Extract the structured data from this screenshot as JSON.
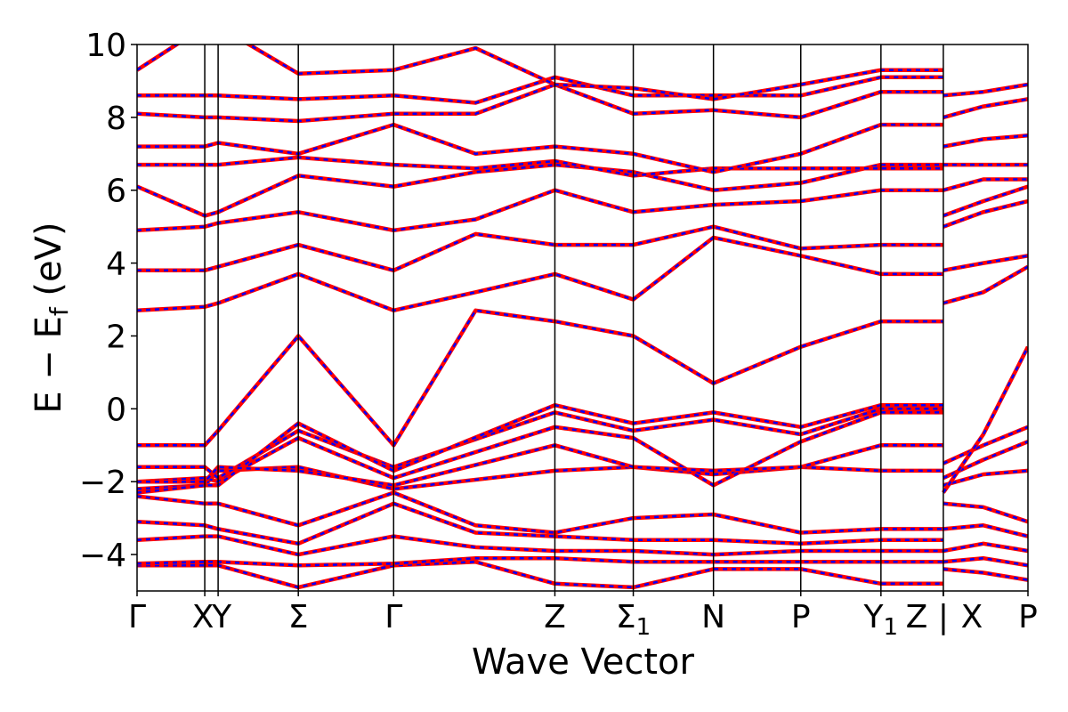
{
  "chart_data": {
    "type": "line",
    "xlabel": "Wave Vector",
    "ylabel": "E − E_f (eV)",
    "ylabel_main": "E − E",
    "ylabel_sub": "f",
    "ylabel_unit": " (eV)",
    "ylim": [
      -5,
      10
    ],
    "y_ticks": [
      -4,
      -2,
      0,
      2,
      4,
      6,
      8,
      10
    ],
    "y_tick_labels": [
      "−4",
      "−2",
      "0",
      "2",
      "4",
      "6",
      "8",
      "10"
    ],
    "xlim": [
      0,
      1
    ],
    "grid": false,
    "band_colors": {
      "solid": "#ff0000",
      "dashed": "#0000ff"
    },
    "high_symmetry_points": [
      {
        "label": "Γ",
        "x": 0.0,
        "line": false
      },
      {
        "label": "X",
        "x": 0.076,
        "line": true
      },
      {
        "label": "Y",
        "x": 0.091,
        "line": true
      },
      {
        "label": "Σ",
        "x": 0.181,
        "line": true
      },
      {
        "label": "Γ",
        "x": 0.288,
        "line": true
      },
      {
        "label": "Z",
        "x": 0.469,
        "line": true
      },
      {
        "label": "Σ",
        "sub": "1",
        "x": 0.557,
        "line": true
      },
      {
        "label": "N",
        "x": 0.647,
        "line": true
      },
      {
        "label": "P",
        "x": 0.745,
        "line": true
      },
      {
        "label": "Y",
        "sub": "1",
        "x": 0.835,
        "line": true
      },
      {
        "label": "Z",
        "x": 0.905,
        "line": true
      },
      {
        "label": "|",
        "x": 0.905,
        "line": false
      },
      {
        "label": "X",
        "x": 0.905,
        "line": false
      },
      {
        "label": "P",
        "x": 1.0,
        "line": false
      }
    ],
    "series": [
      {
        "x": [
          0,
          0.076,
          0.091,
          0.181,
          0.288,
          0.38,
          0.469,
          0.557,
          0.647,
          0.745,
          0.835,
          0.905
        ],
        "y": [
          -4.3,
          -4.3,
          -4.3,
          -4.9,
          -4.3,
          -4.2,
          -4.8,
          -4.9,
          -4.4,
          -4.4,
          -4.8,
          -4.8
        ]
      },
      {
        "x": [
          0,
          0.076,
          0.091,
          0.181,
          0.288,
          0.38,
          0.469,
          0.557,
          0.647,
          0.745,
          0.835,
          0.905
        ],
        "y": [
          -4.25,
          -4.2,
          -4.2,
          -4.3,
          -4.25,
          -4.1,
          -4.1,
          -4.2,
          -4.2,
          -4.2,
          -4.2,
          -4.2
        ]
      },
      {
        "x": [
          0,
          0.076,
          0.091,
          0.181,
          0.288,
          0.38,
          0.469,
          0.557,
          0.647,
          0.745,
          0.835,
          0.905
        ],
        "y": [
          -3.6,
          -3.5,
          -3.5,
          -4.0,
          -3.5,
          -3.8,
          -3.9,
          -3.9,
          -4.0,
          -3.9,
          -3.9,
          -3.9
        ]
      },
      {
        "x": [
          0,
          0.076,
          0.091,
          0.181,
          0.288,
          0.38,
          0.469,
          0.557,
          0.647,
          0.745,
          0.835,
          0.905
        ],
        "y": [
          -3.1,
          -3.2,
          -3.3,
          -3.7,
          -2.6,
          -3.4,
          -3.5,
          -3.6,
          -3.6,
          -3.7,
          -3.6,
          -3.6
        ]
      },
      {
        "x": [
          0,
          0.076,
          0.091,
          0.181,
          0.288,
          0.38,
          0.469,
          0.557,
          0.647,
          0.745,
          0.835,
          0.905
        ],
        "y": [
          -2.4,
          -2.6,
          -2.6,
          -3.2,
          -2.3,
          -3.2,
          -3.4,
          -3.0,
          -2.9,
          -3.4,
          -3.3,
          -3.3
        ]
      },
      {
        "x": [
          0,
          0.076,
          0.091,
          0.181,
          0.288,
          0.469,
          0.557,
          0.647,
          0.745,
          0.835,
          0.905
        ],
        "y": [
          -2.2,
          -2.1,
          -1.7,
          -1.6,
          -2.2,
          -1.7,
          -1.6,
          -1.8,
          -1.6,
          -1.7,
          -1.7
        ]
      },
      {
        "x": [
          0,
          0.076,
          0.091,
          0.181,
          0.288,
          0.469,
          0.557,
          0.647,
          0.745,
          0.835,
          0.905
        ],
        "y": [
          -2.0,
          -1.9,
          -2.0,
          -0.8,
          -1.9,
          -0.5,
          -0.8,
          -2.1,
          -0.9,
          -0.1,
          -0.1
        ]
      },
      {
        "x": [
          0,
          0.076,
          0.091,
          0.181,
          0.288,
          0.469,
          0.557,
          0.647,
          0.745,
          0.835,
          0.905
        ],
        "y": [
          -1.6,
          -1.6,
          -1.9,
          -0.6,
          -1.6,
          -0.1,
          -0.6,
          -0.3,
          -0.7,
          0.0,
          0.0
        ]
      },
      {
        "x": [
          0,
          0.076,
          0.091,
          0.181,
          0.288,
          0.469,
          0.557,
          0.647,
          0.745,
          0.835,
          0.905
        ],
        "y": [
          -2.3,
          -2.1,
          -2.1,
          -0.4,
          -1.7,
          0.1,
          -0.4,
          -0.1,
          -0.5,
          0.1,
          0.1
        ]
      },
      {
        "x": [
          0,
          0.076,
          0.091,
          0.181,
          0.288,
          0.469,
          0.557,
          0.647,
          0.745,
          0.835,
          0.905
        ],
        "y": [
          -2.0,
          -2.0,
          -1.6,
          -1.7,
          -2.1,
          -1.0,
          -1.6,
          -1.7,
          -1.6,
          -1.0,
          -1.0
        ]
      },
      {
        "x": [
          0,
          0.076,
          0.091,
          0.181,
          0.288,
          0.38,
          0.469,
          0.557,
          0.647,
          0.745,
          0.835,
          0.905
        ],
        "y": [
          -1.0,
          -1.0,
          -0.6,
          2.0,
          -1.0,
          2.7,
          2.4,
          2.0,
          0.7,
          1.7,
          2.4,
          2.4
        ]
      },
      {
        "x": [
          0,
          0.076,
          0.091,
          0.181,
          0.288,
          0.38,
          0.469,
          0.557,
          0.647,
          0.745,
          0.835,
          0.905
        ],
        "y": [
          2.7,
          2.8,
          2.9,
          3.7,
          2.7,
          3.2,
          3.7,
          3.0,
          4.7,
          4.2,
          3.7,
          3.7
        ]
      },
      {
        "x": [
          0,
          0.076,
          0.091,
          0.181,
          0.288,
          0.38,
          0.469,
          0.557,
          0.647,
          0.745,
          0.835,
          0.905
        ],
        "y": [
          3.8,
          3.8,
          3.9,
          4.5,
          3.8,
          4.8,
          4.5,
          4.5,
          5.0,
          4.4,
          4.5,
          4.5
        ]
      },
      {
        "x": [
          0,
          0.076,
          0.091,
          0.181,
          0.288,
          0.38,
          0.469,
          0.557,
          0.647,
          0.745,
          0.835,
          0.905
        ],
        "y": [
          4.9,
          5.0,
          5.1,
          5.4,
          4.9,
          5.2,
          6.0,
          5.4,
          5.6,
          5.7,
          6.0,
          6.0
        ]
      },
      {
        "x": [
          0,
          0.076,
          0.091,
          0.181,
          0.288,
          0.38,
          0.469,
          0.557,
          0.647,
          0.745,
          0.835,
          0.905
        ],
        "y": [
          6.1,
          5.3,
          5.4,
          6.4,
          6.1,
          6.5,
          6.7,
          6.5,
          6.0,
          6.2,
          6.7,
          6.7
        ]
      },
      {
        "x": [
          0,
          0.076,
          0.091,
          0.181,
          0.288,
          0.38,
          0.469,
          0.557,
          0.647,
          0.745,
          0.835,
          0.905
        ],
        "y": [
          6.7,
          6.7,
          6.7,
          6.9,
          6.7,
          6.6,
          6.8,
          6.4,
          6.6,
          6.6,
          6.6,
          6.6
        ]
      },
      {
        "x": [
          0,
          0.076,
          0.091,
          0.181,
          0.288,
          0.38,
          0.469,
          0.557,
          0.647,
          0.745,
          0.835,
          0.905
        ],
        "y": [
          7.2,
          7.2,
          7.3,
          7.0,
          7.8,
          7.0,
          7.2,
          7.0,
          6.5,
          7.0,
          7.8,
          7.8
        ]
      },
      {
        "x": [
          0,
          0.076,
          0.091,
          0.181,
          0.288,
          0.38,
          0.469,
          0.557,
          0.647,
          0.745,
          0.835,
          0.905
        ],
        "y": [
          8.1,
          8.0,
          8.0,
          7.9,
          8.1,
          8.1,
          8.9,
          8.1,
          8.2,
          8.0,
          8.7,
          8.7
        ]
      },
      {
        "x": [
          0,
          0.076,
          0.091,
          0.181,
          0.288,
          0.38,
          0.469,
          0.557,
          0.647,
          0.745,
          0.835,
          0.905
        ],
        "y": [
          8.6,
          8.6,
          8.6,
          8.5,
          8.6,
          8.4,
          9.1,
          8.6,
          8.6,
          8.6,
          9.1,
          9.1
        ]
      },
      {
        "x": [
          0,
          0.076,
          0.091,
          0.181,
          0.288,
          0.38,
          0.469,
          0.557,
          0.647,
          0.745,
          0.835,
          0.905
        ],
        "y": [
          9.3,
          10.5,
          10.5,
          9.2,
          9.3,
          9.9,
          8.9,
          8.8,
          8.5,
          8.9,
          9.3,
          9.3
        ]
      },
      {
        "x": [
          0.905,
          0.95,
          1.0
        ],
        "y": [
          -4.4,
          -4.5,
          -4.7
        ]
      },
      {
        "x": [
          0.905,
          0.95,
          1.0
        ],
        "y": [
          -4.2,
          -4.1,
          -4.3
        ]
      },
      {
        "x": [
          0.905,
          0.95,
          1.0
        ],
        "y": [
          -3.9,
          -3.7,
          -3.9
        ]
      },
      {
        "x": [
          0.905,
          0.95,
          1.0
        ],
        "y": [
          -3.3,
          -3.2,
          -3.5
        ]
      },
      {
        "x": [
          0.905,
          0.95,
          1.0
        ],
        "y": [
          -2.6,
          -2.7,
          -3.1
        ]
      },
      {
        "x": [
          0.905,
          0.95,
          1.0
        ],
        "y": [
          -2.1,
          -1.8,
          -1.7
        ]
      },
      {
        "x": [
          0.905,
          0.95,
          1.0
        ],
        "y": [
          -1.9,
          -1.4,
          -0.9
        ]
      },
      {
        "x": [
          0.905,
          0.95,
          1.0
        ],
        "y": [
          -1.5,
          -1.0,
          -0.5
        ]
      },
      {
        "x": [
          0.905,
          0.95,
          1.0
        ],
        "y": [
          -2.3,
          -0.7,
          1.7
        ]
      },
      {
        "x": [
          0.905,
          0.95,
          1.0
        ],
        "y": [
          2.9,
          3.2,
          3.9
        ]
      },
      {
        "x": [
          0.905,
          0.95,
          1.0
        ],
        "y": [
          3.8,
          4.0,
          4.2
        ]
      },
      {
        "x": [
          0.905,
          0.95,
          1.0
        ],
        "y": [
          5.0,
          5.4,
          5.7
        ]
      },
      {
        "x": [
          0.905,
          0.95,
          1.0
        ],
        "y": [
          5.3,
          5.7,
          6.1
        ]
      },
      {
        "x": [
          0.905,
          0.95,
          1.0
        ],
        "y": [
          6.0,
          6.3,
          6.3
        ]
      },
      {
        "x": [
          0.905,
          0.95,
          1.0
        ],
        "y": [
          6.7,
          6.7,
          6.7
        ]
      },
      {
        "x": [
          0.905,
          0.95,
          1.0
        ],
        "y": [
          7.2,
          7.4,
          7.5
        ]
      },
      {
        "x": [
          0.905,
          0.95,
          1.0
        ],
        "y": [
          8.0,
          8.3,
          8.5
        ]
      },
      {
        "x": [
          0.905,
          0.95,
          1.0
        ],
        "y": [
          8.6,
          8.7,
          8.9
        ]
      }
    ]
  }
}
